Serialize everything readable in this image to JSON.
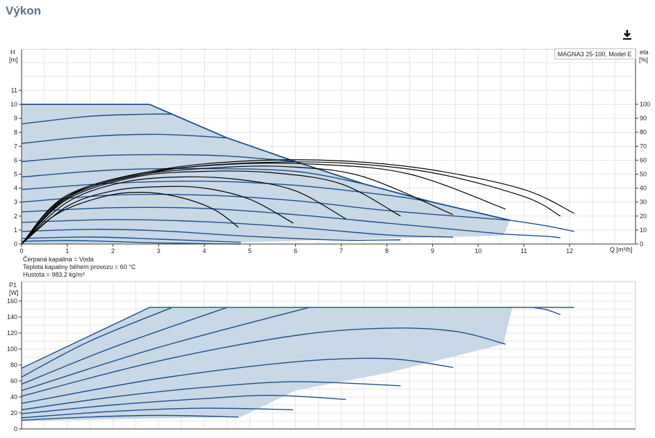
{
  "page": {
    "title": "Výkon"
  },
  "toolbar": {
    "download_icon": "download-icon"
  },
  "colors": {
    "curve": "#1a4f8a",
    "area": "#c9d8e6",
    "grid": "#dcdcdc",
    "eff": "#000000"
  },
  "info": {
    "line1": "Čerpaná kapalina = Voda",
    "line2": "Teplota kapaliny během provozu = 60 °C",
    "line3": "Hustota = 983.2 kg/m³"
  },
  "chart_data": [
    {
      "type": "line",
      "legend": "MAGNA3 25-100, Model E",
      "ylabel": "H\n[m]",
      "y2label": "eta\n[%]",
      "xlabel": "Q [m³/h]",
      "xlim": [
        0,
        12.5
      ],
      "ylim": [
        0,
        11
      ],
      "y2lim": [
        0,
        100
      ],
      "xticks": [
        0,
        1,
        2,
        3,
        4,
        5,
        6,
        7,
        8,
        9,
        10,
        11,
        12
      ],
      "yticks": [
        0,
        1,
        2,
        3,
        4,
        5,
        6,
        7,
        8,
        9,
        10,
        11
      ],
      "y2ticks": [
        0,
        10,
        20,
        30,
        40,
        50,
        60,
        70,
        80,
        90,
        100
      ],
      "grid": true,
      "envelope": [
        [
          0,
          10
        ],
        [
          2.8,
          10
        ],
        [
          4.5,
          7.6
        ],
        [
          6,
          5.9
        ],
        [
          7.5,
          4.3
        ],
        [
          9,
          3
        ],
        [
          10.7,
          1.7
        ],
        [
          10.55,
          0.6
        ],
        [
          8,
          0.4
        ],
        [
          6.5,
          0.28
        ],
        [
          6,
          0.22
        ],
        [
          4.8,
          0.12
        ],
        [
          0,
          0
        ]
      ],
      "head_series": [
        {
          "values": [
            [
              0,
              8.6
            ],
            [
              1.5,
              9.15
            ],
            [
              2.8,
              9.3
            ],
            [
              3.3,
              9.3
            ]
          ]
        },
        {
          "values": [
            [
              0,
              7.2
            ],
            [
              1.5,
              7.7
            ],
            [
              3,
              7.85
            ],
            [
              4.5,
              7.6
            ]
          ]
        },
        {
          "values": [
            [
              0,
              5.9
            ],
            [
              1.5,
              6.3
            ],
            [
              3,
              6.4
            ],
            [
              4.5,
              6.3
            ],
            [
              6,
              5.9
            ]
          ]
        },
        {
          "values": [
            [
              0,
              4.8
            ],
            [
              2,
              5.3
            ],
            [
              4,
              5.4
            ],
            [
              6,
              5.2
            ],
            [
              7.5,
              4.3
            ]
          ]
        },
        {
          "values": [
            [
              0,
              3.9
            ],
            [
              2,
              4.35
            ],
            [
              4,
              4.5
            ],
            [
              6,
              4.2
            ],
            [
              8,
              3.5
            ],
            [
              9,
              3
            ]
          ]
        },
        {
          "values": [
            [
              0,
              3
            ],
            [
              2,
              3.5
            ],
            [
              4,
              3.5
            ],
            [
              6,
              3.1
            ],
            [
              8,
              2.4
            ],
            [
              10.7,
              1.7
            ]
          ]
        },
        {
          "values": [
            [
              0,
              2.3
            ],
            [
              2,
              2.6
            ],
            [
              4,
              2.55
            ],
            [
              6,
              2.1
            ],
            [
              8,
              1.5
            ],
            [
              10.6,
              0.7
            ]
          ]
        },
        {
          "values": [
            [
              0,
              1.55
            ],
            [
              2,
              1.75
            ],
            [
              4,
              1.6
            ],
            [
              6,
              1.2
            ],
            [
              8,
              0.65
            ],
            [
              9.45,
              0.5
            ]
          ]
        },
        {
          "values": [
            [
              0,
              0.9
            ],
            [
              1.5,
              1.05
            ],
            [
              3,
              0.95
            ],
            [
              5,
              0.55
            ],
            [
              7,
              0.28
            ],
            [
              8.3,
              0.3
            ]
          ]
        },
        {
          "values": [
            [
              0,
              0.4
            ],
            [
              1.5,
              0.5
            ],
            [
              3,
              0.35
            ],
            [
              4.8,
              0.12
            ]
          ]
        },
        {
          "values": [
            [
              0,
              0.2
            ],
            [
              1,
              0.25
            ],
            [
              2,
              0.18
            ],
            [
              3,
              0.08
            ],
            [
              4.8,
              0
            ]
          ]
        },
        {
          "values": [
            [
              10.7,
              1.7
            ],
            [
              11.5,
              1.3
            ],
            [
              12.1,
              0.9
            ]
          ]
        },
        {
          "values": [
            [
              10.6,
              0.7
            ],
            [
              11.5,
              0.55
            ],
            [
              11.8,
              0.45
            ]
          ]
        }
      ],
      "efficiency_series": [
        {
          "values": [
            [
              0,
              0
            ],
            [
              0.8,
              22
            ],
            [
              1.8,
              34
            ],
            [
              2.6,
              37
            ],
            [
              3.4,
              34
            ],
            [
              4.2,
              25
            ],
            [
              4.75,
              12
            ]
          ]
        },
        {
          "values": [
            [
              0,
              0
            ],
            [
              1,
              27
            ],
            [
              2,
              38
            ],
            [
              3,
              41
            ],
            [
              4,
              40
            ],
            [
              5,
              32
            ],
            [
              5.95,
              15
            ]
          ]
        },
        {
          "values": [
            [
              0,
              0
            ],
            [
              1,
              30
            ],
            [
              2.2,
              44
            ],
            [
              3.5,
              48
            ],
            [
              4.8,
              46
            ],
            [
              6,
              38
            ],
            [
              7.1,
              18
            ]
          ]
        },
        {
          "values": [
            [
              0,
              0
            ],
            [
              1,
              32
            ],
            [
              2.5,
              48
            ],
            [
              4,
              52
            ],
            [
              5.5,
              51
            ],
            [
              7,
              43
            ],
            [
              8.3,
              20
            ]
          ]
        },
        {
          "values": [
            [
              0,
              0
            ],
            [
              1,
              33
            ],
            [
              2.5,
              49
            ],
            [
              4.5,
              55
            ],
            [
              6,
              55
            ],
            [
              7.5,
              48
            ],
            [
              9.45,
              21
            ]
          ]
        },
        {
          "values": [
            [
              0,
              0
            ],
            [
              1,
              34
            ],
            [
              2.5,
              50
            ],
            [
              4.5,
              57
            ],
            [
              6.5,
              57
            ],
            [
              8.5,
              50
            ],
            [
              10.6,
              25
            ]
          ]
        },
        {
          "values": [
            [
              0,
              0
            ],
            [
              1,
              34
            ],
            [
              3,
              52
            ],
            [
              5,
              58
            ],
            [
              7,
              58
            ],
            [
              9,
              51
            ],
            [
              11,
              34
            ],
            [
              11.8,
              20
            ]
          ]
        },
        {
          "values": [
            [
              0,
              0
            ],
            [
              1,
              35
            ],
            [
              3,
              53
            ],
            [
              5,
              59.5
            ],
            [
              7,
              59.5
            ],
            [
              9,
              53
            ],
            [
              11,
              39
            ],
            [
              12.1,
              22
            ]
          ]
        }
      ]
    },
    {
      "type": "line",
      "ylabel": "P1\n[W]",
      "xlim": [
        0,
        12.5
      ],
      "ylim": [
        0,
        170
      ],
      "yticks": [
        0,
        20,
        40,
        60,
        80,
        100,
        120,
        140,
        160
      ],
      "grid": true,
      "envelope": [
        [
          0,
          76
        ],
        [
          2.8,
          152
        ],
        [
          10.75,
          152
        ],
        [
          10.55,
          106
        ],
        [
          8,
          70
        ],
        [
          6,
          48
        ],
        [
          4.8,
          15
        ],
        [
          0,
          10
        ]
      ],
      "power_series": [
        {
          "values": [
            [
              0,
              76
            ],
            [
              2.8,
              152
            ]
          ]
        },
        {
          "values": [
            [
              0,
              65
            ],
            [
              1.5,
              110
            ],
            [
              3.3,
              152
            ]
          ]
        },
        {
          "values": [
            [
              0,
              56
            ],
            [
              2,
              102
            ],
            [
              4.5,
              152
            ]
          ]
        },
        {
          "values": [
            [
              0,
              48
            ],
            [
              3,
              102
            ],
            [
              6.3,
              152
            ]
          ]
        },
        {
          "values": [
            [
              0,
              41
            ],
            [
              3,
              85
            ],
            [
              6,
              117
            ],
            [
              8,
              126
            ],
            [
              9.5,
              122
            ],
            [
              10.6,
              106
            ]
          ]
        },
        {
          "values": [
            [
              0,
              32
            ],
            [
              3,
              63
            ],
            [
              6,
              84
            ],
            [
              8,
              88
            ],
            [
              9.45,
              77
            ]
          ]
        },
        {
          "values": [
            [
              0,
              24
            ],
            [
              2,
              40
            ],
            [
              4,
              52
            ],
            [
              6,
              59
            ],
            [
              8.3,
              54
            ]
          ]
        },
        {
          "values": [
            [
              0,
              19
            ],
            [
              2,
              30
            ],
            [
              4,
              38
            ],
            [
              5.5,
              42
            ],
            [
              7.1,
              37
            ]
          ]
        },
        {
          "values": [
            [
              0,
              14
            ],
            [
              2,
              22
            ],
            [
              4,
              26
            ],
            [
              5.95,
              24
            ]
          ]
        },
        {
          "values": [
            [
              0,
              11
            ],
            [
              1.5,
              15
            ],
            [
              3,
              17
            ],
            [
              4.75,
              15
            ]
          ]
        },
        {
          "values": [
            [
              2.8,
              152
            ],
            [
              12.1,
              152
            ]
          ]
        },
        {
          "values": [
            [
              11.2,
              152
            ],
            [
              11.5,
              149
            ],
            [
              11.8,
              143
            ]
          ]
        }
      ]
    }
  ]
}
